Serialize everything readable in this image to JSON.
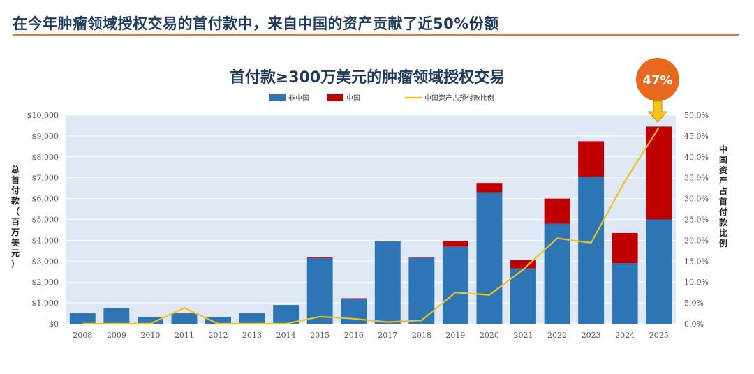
{
  "headline": "在今年肿瘤领域授权交易的首付款中，来自中国的资产贡献了近50%份额",
  "colors": {
    "non_china": "#2e75b6",
    "china": "#c00000",
    "share_line": "#f0c020",
    "plot_bg": "#dfe9f5",
    "callout": "#e8691e",
    "headline": "#1f3a5c",
    "rule": "#e07b2a"
  },
  "callout": {
    "text": "47%",
    "year": "2025"
  },
  "chart_data": {
    "type": "bar",
    "stacked": true,
    "title": "首付款≥300万美元的肿瘤领域授权交易",
    "categories": [
      "2008",
      "2009",
      "2010",
      "2011",
      "2012",
      "2013",
      "2014",
      "2015",
      "2016",
      "2017",
      "2018",
      "2019",
      "2020",
      "2021",
      "2022",
      "2023",
      "2024",
      "2025"
    ],
    "series": [
      {
        "name": "非中国",
        "values": [
          500,
          750,
          320,
          500,
          320,
          500,
          900,
          3150,
          1200,
          3950,
          3170,
          3700,
          6300,
          2650,
          4800,
          7050,
          2900,
          5000
        ]
      },
      {
        "name": "中国",
        "values": [
          0,
          0,
          0,
          30,
          0,
          0,
          0,
          50,
          20,
          20,
          30,
          280,
          450,
          400,
          1200,
          1700,
          1450,
          4450
        ]
      }
    ],
    "line_series": {
      "name": "中国资产占预付款比例",
      "values": [
        0.0,
        0.0,
        0.0,
        3.8,
        0.0,
        0.0,
        0.0,
        1.7,
        1.2,
        0.4,
        0.8,
        7.5,
        6.9,
        13.0,
        20.5,
        19.4,
        34.2,
        47.0
      ]
    },
    "ylim": [
      0,
      10000
    ],
    "y2lim": [
      0,
      50
    ],
    "yticks": [
      "$0",
      "$1,000",
      "$2,000",
      "$3,000",
      "$4,000",
      "$5,000",
      "$6,000",
      "$7,000",
      "$8,000",
      "$9,000",
      "$10,000"
    ],
    "y2ticks": [
      "0.0%",
      "5.0%",
      "10.0%",
      "15.0%",
      "20.0%",
      "25.0%",
      "30.0%",
      "35.0%",
      "40.0%",
      "45.0%",
      "50.0%"
    ],
    "ylabel": "总首付款（百万美元）",
    "y2label": "中国资产占首付款比例",
    "legend_position": "top-center",
    "grid": true
  }
}
